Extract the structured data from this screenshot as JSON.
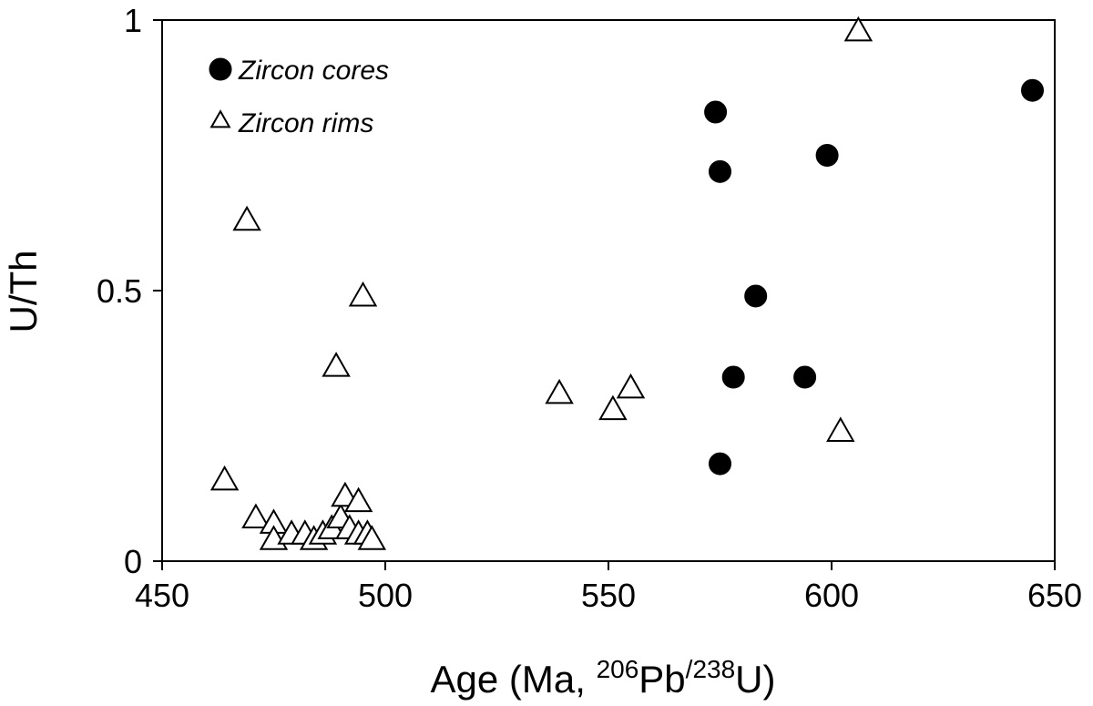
{
  "chart_data": {
    "type": "scatter",
    "xlim": [
      450,
      650
    ],
    "ylim": [
      0,
      1
    ],
    "x_ticks": [
      450,
      500,
      550,
      600,
      650
    ],
    "y_ticks": [
      0,
      0.5,
      1
    ],
    "x_tick_labels": [
      "450",
      "500",
      "550",
      "600",
      "650"
    ],
    "y_tick_labels": [
      "0",
      "0.5",
      "1"
    ],
    "xlabel": {
      "prefix": "Age (Ma, ",
      "sup1": "206",
      "mid": "Pb",
      "sup2": "/238",
      "suffix": "U)"
    },
    "ylabel": "U/Th",
    "grid": false,
    "legend_position": "top-left",
    "series": [
      {
        "name": "Zircon cores",
        "marker": "filled-circle",
        "color": "#000000",
        "points": [
          [
            574,
            0.83
          ],
          [
            575,
            0.72
          ],
          [
            583,
            0.49
          ],
          [
            578,
            0.34
          ],
          [
            575,
            0.18
          ],
          [
            594,
            0.34
          ],
          [
            599,
            0.75
          ],
          [
            645,
            0.87
          ]
        ]
      },
      {
        "name": "Zircon rims",
        "marker": "open-triangle",
        "color": "#000000",
        "points": [
          [
            606,
            0.98
          ],
          [
            469,
            0.63
          ],
          [
            495,
            0.49
          ],
          [
            489,
            0.36
          ],
          [
            539,
            0.31
          ],
          [
            555,
            0.32
          ],
          [
            551,
            0.28
          ],
          [
            602,
            0.24
          ],
          [
            464,
            0.15
          ],
          [
            471,
            0.08
          ],
          [
            475,
            0.07
          ],
          [
            475,
            0.04
          ],
          [
            479,
            0.05
          ],
          [
            482,
            0.05
          ],
          [
            484,
            0.04
          ],
          [
            486,
            0.05
          ],
          [
            488,
            0.06
          ],
          [
            490,
            0.08
          ],
          [
            491,
            0.12
          ],
          [
            494,
            0.11
          ],
          [
            492,
            0.06
          ],
          [
            494,
            0.05
          ],
          [
            496,
            0.05
          ],
          [
            497,
            0.04
          ]
        ]
      }
    ]
  }
}
